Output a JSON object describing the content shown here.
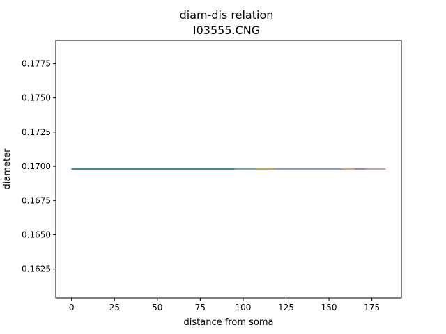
{
  "chart_data": {
    "type": "line",
    "title": "diam-dis relation",
    "subtitle": "I03555.CNG",
    "xlabel": "distance from soma",
    "ylabel": "diameter",
    "xlim": [
      -9.2,
      192.2
    ],
    "ylim": [
      0.1604,
      0.1792
    ],
    "xticks": [
      {
        "value": 0,
        "label": "0"
      },
      {
        "value": 25,
        "label": "25"
      },
      {
        "value": 50,
        "label": "50"
      },
      {
        "value": 75,
        "label": "75"
      },
      {
        "value": 100,
        "label": "100"
      },
      {
        "value": 125,
        "label": "125"
      },
      {
        "value": 150,
        "label": "150"
      },
      {
        "value": 175,
        "label": "175"
      }
    ],
    "yticks": [
      {
        "value": 0.1625,
        "label": "0.1625"
      },
      {
        "value": 0.165,
        "label": "0.1650"
      },
      {
        "value": 0.1675,
        "label": "0.1675"
      },
      {
        "value": 0.17,
        "label": "0.1700"
      },
      {
        "value": 0.1725,
        "label": "0.1725"
      },
      {
        "value": 0.175,
        "label": "0.1750"
      },
      {
        "value": 0.1775,
        "label": "0.1775"
      }
    ],
    "grid": false,
    "legend": "none",
    "series": [
      {
        "color": "#c69bb5",
        "x": [
          0,
          183
        ],
        "y": [
          0.1698,
          0.1698
        ]
      },
      {
        "color": "#9b86c0",
        "x": [
          0,
          171
        ],
        "y": [
          0.1698,
          0.1698
        ]
      },
      {
        "color": "#d6a57a",
        "x": [
          0,
          165
        ],
        "y": [
          0.1698,
          0.1698
        ]
      },
      {
        "color": "#8a9ec4",
        "x": [
          0,
          158
        ],
        "y": [
          0.1698,
          0.1698
        ]
      },
      {
        "color": "#c9a64e",
        "x": [
          0,
          118
        ],
        "y": [
          0.1698,
          0.1698
        ]
      },
      {
        "color": "#6fb0a0",
        "x": [
          0,
          108
        ],
        "y": [
          0.1698,
          0.1698
        ]
      },
      {
        "color": "#3f8aa6",
        "x": [
          0,
          95
        ],
        "y": [
          0.1698,
          0.1698
        ]
      }
    ]
  }
}
